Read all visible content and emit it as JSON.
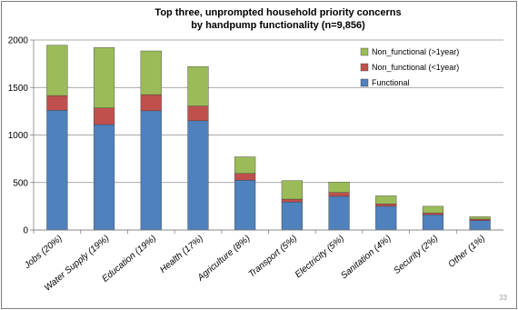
{
  "slide": {
    "page_number": "33"
  },
  "chart_data": {
    "type": "bar",
    "stacked": true,
    "title_lines": [
      "Top three, unprompted household priority concerns",
      "by handpump functionality (n=9,856)"
    ],
    "xlabel": "",
    "ylabel": "",
    "ylim": [
      0,
      2000
    ],
    "yticks": [
      0,
      500,
      1000,
      1500,
      2000
    ],
    "grid": true,
    "legend_position": "top-right",
    "categories": [
      "Jobs (20%)",
      "Water Supply (19%)",
      "Education (19%)",
      "Health (17%)",
      "Agriculture (8%)",
      "Transport (5%)",
      "Electricity (5%)",
      "Sanitation (4%)",
      "Security (2%)",
      "Other (1%)"
    ],
    "series": [
      {
        "name": "Functional",
        "color": "#4f81bd",
        "values": [
          1260,
          1110,
          1255,
          1150,
          525,
          295,
          355,
          250,
          160,
          100
        ]
      },
      {
        "name": "Non_functional (<1year)",
        "color": "#c0504d",
        "values": [
          155,
          175,
          170,
          155,
          70,
          30,
          40,
          25,
          20,
          15
        ]
      },
      {
        "name": "Non_functional (>1year)",
        "color": "#9bbb59",
        "values": [
          530,
          635,
          460,
          415,
          175,
          195,
          110,
          85,
          70,
          25
        ]
      }
    ]
  }
}
